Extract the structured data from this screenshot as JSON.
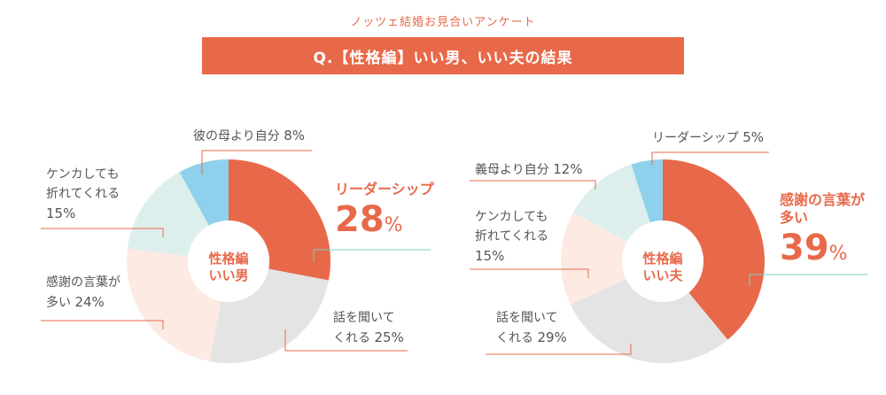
{
  "header": {
    "subtitle": "ノッツェ結婚お見合いアンケート",
    "title": "Q.【性格編】いい男、いい夫の結果"
  },
  "colors": {
    "accent": "#e8694a",
    "light_blue": "#8fd1ec",
    "mint": "#dcefec",
    "peach": "#fdeae2",
    "gray": "#e4e4e4",
    "teal_line": "#7ccfc6"
  },
  "chart_data": [
    {
      "type": "pie",
      "center_label": [
        "性格編",
        "いい男"
      ],
      "slices": [
        {
          "label": "リーダーシップ",
          "value": 28,
          "display": "28%",
          "color": "#e8694a",
          "highlight": true
        },
        {
          "label": "話を聞いてくれる",
          "value": 25,
          "display": "25%",
          "color": "#e4e4e4"
        },
        {
          "label": "感謝の言葉が多い",
          "value": 24,
          "display": "24%",
          "color": "#fdeae2"
        },
        {
          "label": "ケンカしても折れてくれる",
          "value": 15,
          "display": "15%",
          "color": "#dcefec"
        },
        {
          "label": "彼の母より自分",
          "value": 8,
          "display": "8%",
          "color": "#8fd1ec"
        }
      ]
    },
    {
      "type": "pie",
      "center_label": [
        "性格編",
        "いい夫"
      ],
      "slices": [
        {
          "label": "感謝の言葉が多い",
          "value": 39,
          "display": "39%",
          "color": "#e8694a",
          "highlight": true
        },
        {
          "label": "話を聞いてくれる",
          "value": 29,
          "display": "29%",
          "color": "#e4e4e4"
        },
        {
          "label": "ケンカしても折れてくれる",
          "value": 15,
          "display": "15%",
          "color": "#fdeae2"
        },
        {
          "label": "義母より自分",
          "value": 12,
          "display": "12%",
          "color": "#dcefec"
        },
        {
          "label": "リーダーシップ",
          "value": 5,
          "display": "5%",
          "color": "#8fd1ec"
        }
      ]
    }
  ],
  "labels": {
    "c1": {
      "s0": {
        "lines": [
          "リーダーシップ"
        ],
        "pct": "28",
        "unit": "%"
      },
      "s1": {
        "lines": [
          "話を聞いて",
          "くれる"
        ],
        "pct": "25%"
      },
      "s2": {
        "lines": [
          "感謝の言葉が",
          "多い"
        ],
        "pct": "24%"
      },
      "s3": {
        "lines": [
          "ケンカしても",
          "折れてくれる"
        ],
        "pct": "15%"
      },
      "s4": {
        "lines": [
          "彼の母より自分"
        ],
        "pct": "8%"
      }
    },
    "c2": {
      "s0": {
        "lines": [
          "感謝の言葉が",
          "多い"
        ],
        "pct": "39",
        "unit": "%"
      },
      "s1": {
        "lines": [
          "話を聞いて",
          "くれる"
        ],
        "pct": "29%"
      },
      "s2": {
        "lines": [
          "ケンカしても",
          "折れてくれる"
        ],
        "pct": "15%"
      },
      "s3": {
        "lines": [
          "義母より自分"
        ],
        "pct": "12%"
      },
      "s4": {
        "lines": [
          "リーダーシップ"
        ],
        "pct": "5%"
      }
    }
  }
}
